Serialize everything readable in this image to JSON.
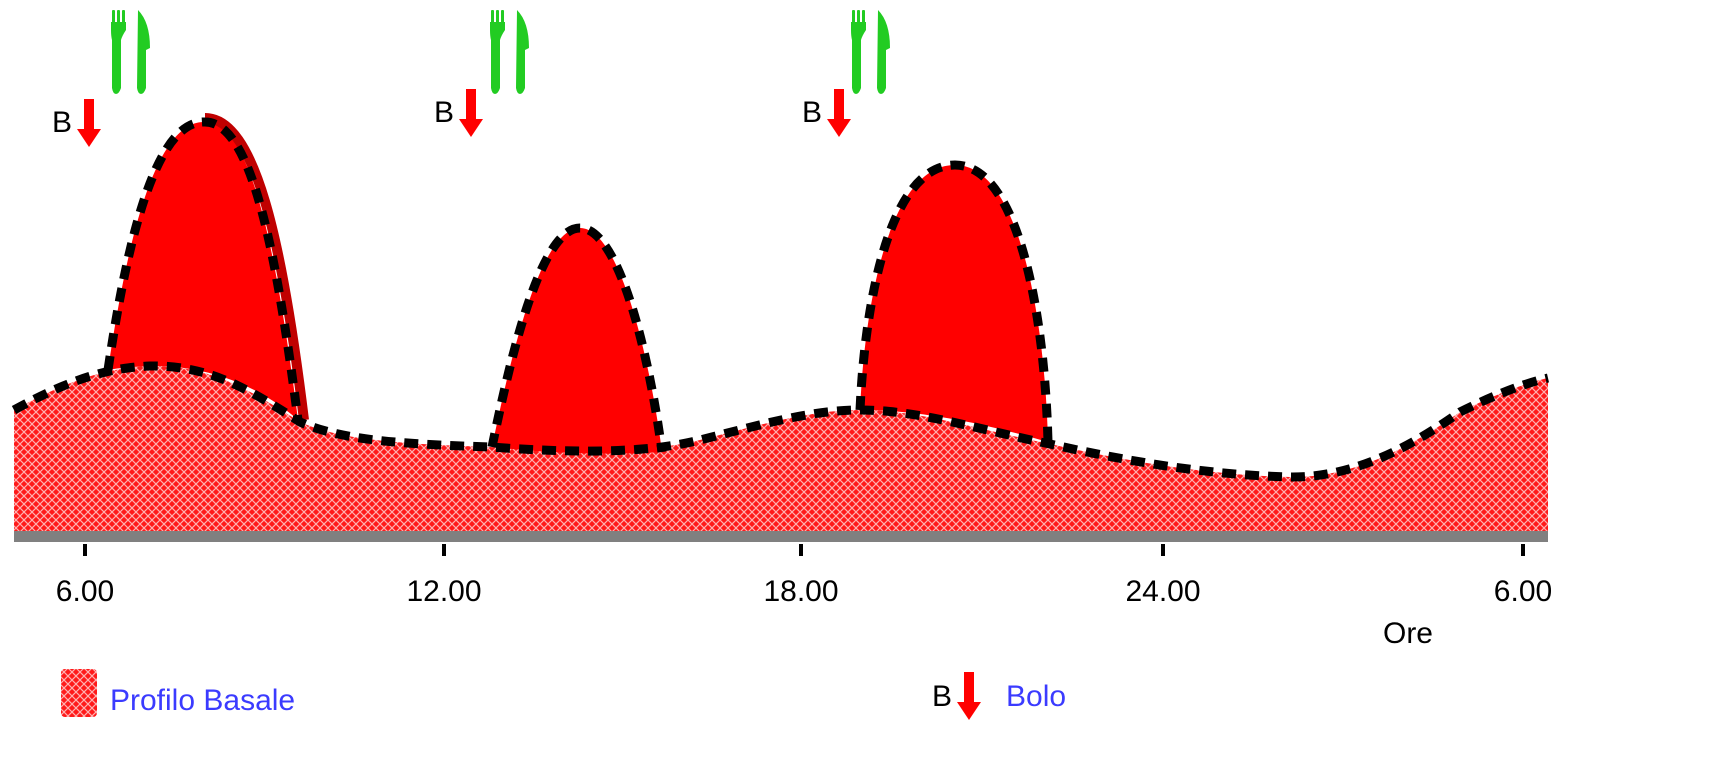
{
  "x_axis": {
    "ticks": [
      "6.00",
      "12.00",
      "18.00",
      "24.00",
      "6.00"
    ],
    "unit_label": "Ore"
  },
  "bolus_marker": {
    "letter": "B",
    "icon": "red-down-arrow-icon"
  },
  "meal_marker": {
    "icon": "fork-knife-icon"
  },
  "legend": {
    "basal": {
      "label": "Profilo Basale",
      "icon": "crosshatch-red-swatch-icon"
    },
    "bolus": {
      "letter": "B",
      "label": "Bolo",
      "icon": "red-down-arrow-icon"
    }
  },
  "colors": {
    "insulin_fill": "#ff0000",
    "outline_dash": "#000000",
    "outline_solid": "#c00000",
    "baseline": "#808080",
    "meal_icon": "#22cc22",
    "legend_text": "#3b3bff"
  }
}
